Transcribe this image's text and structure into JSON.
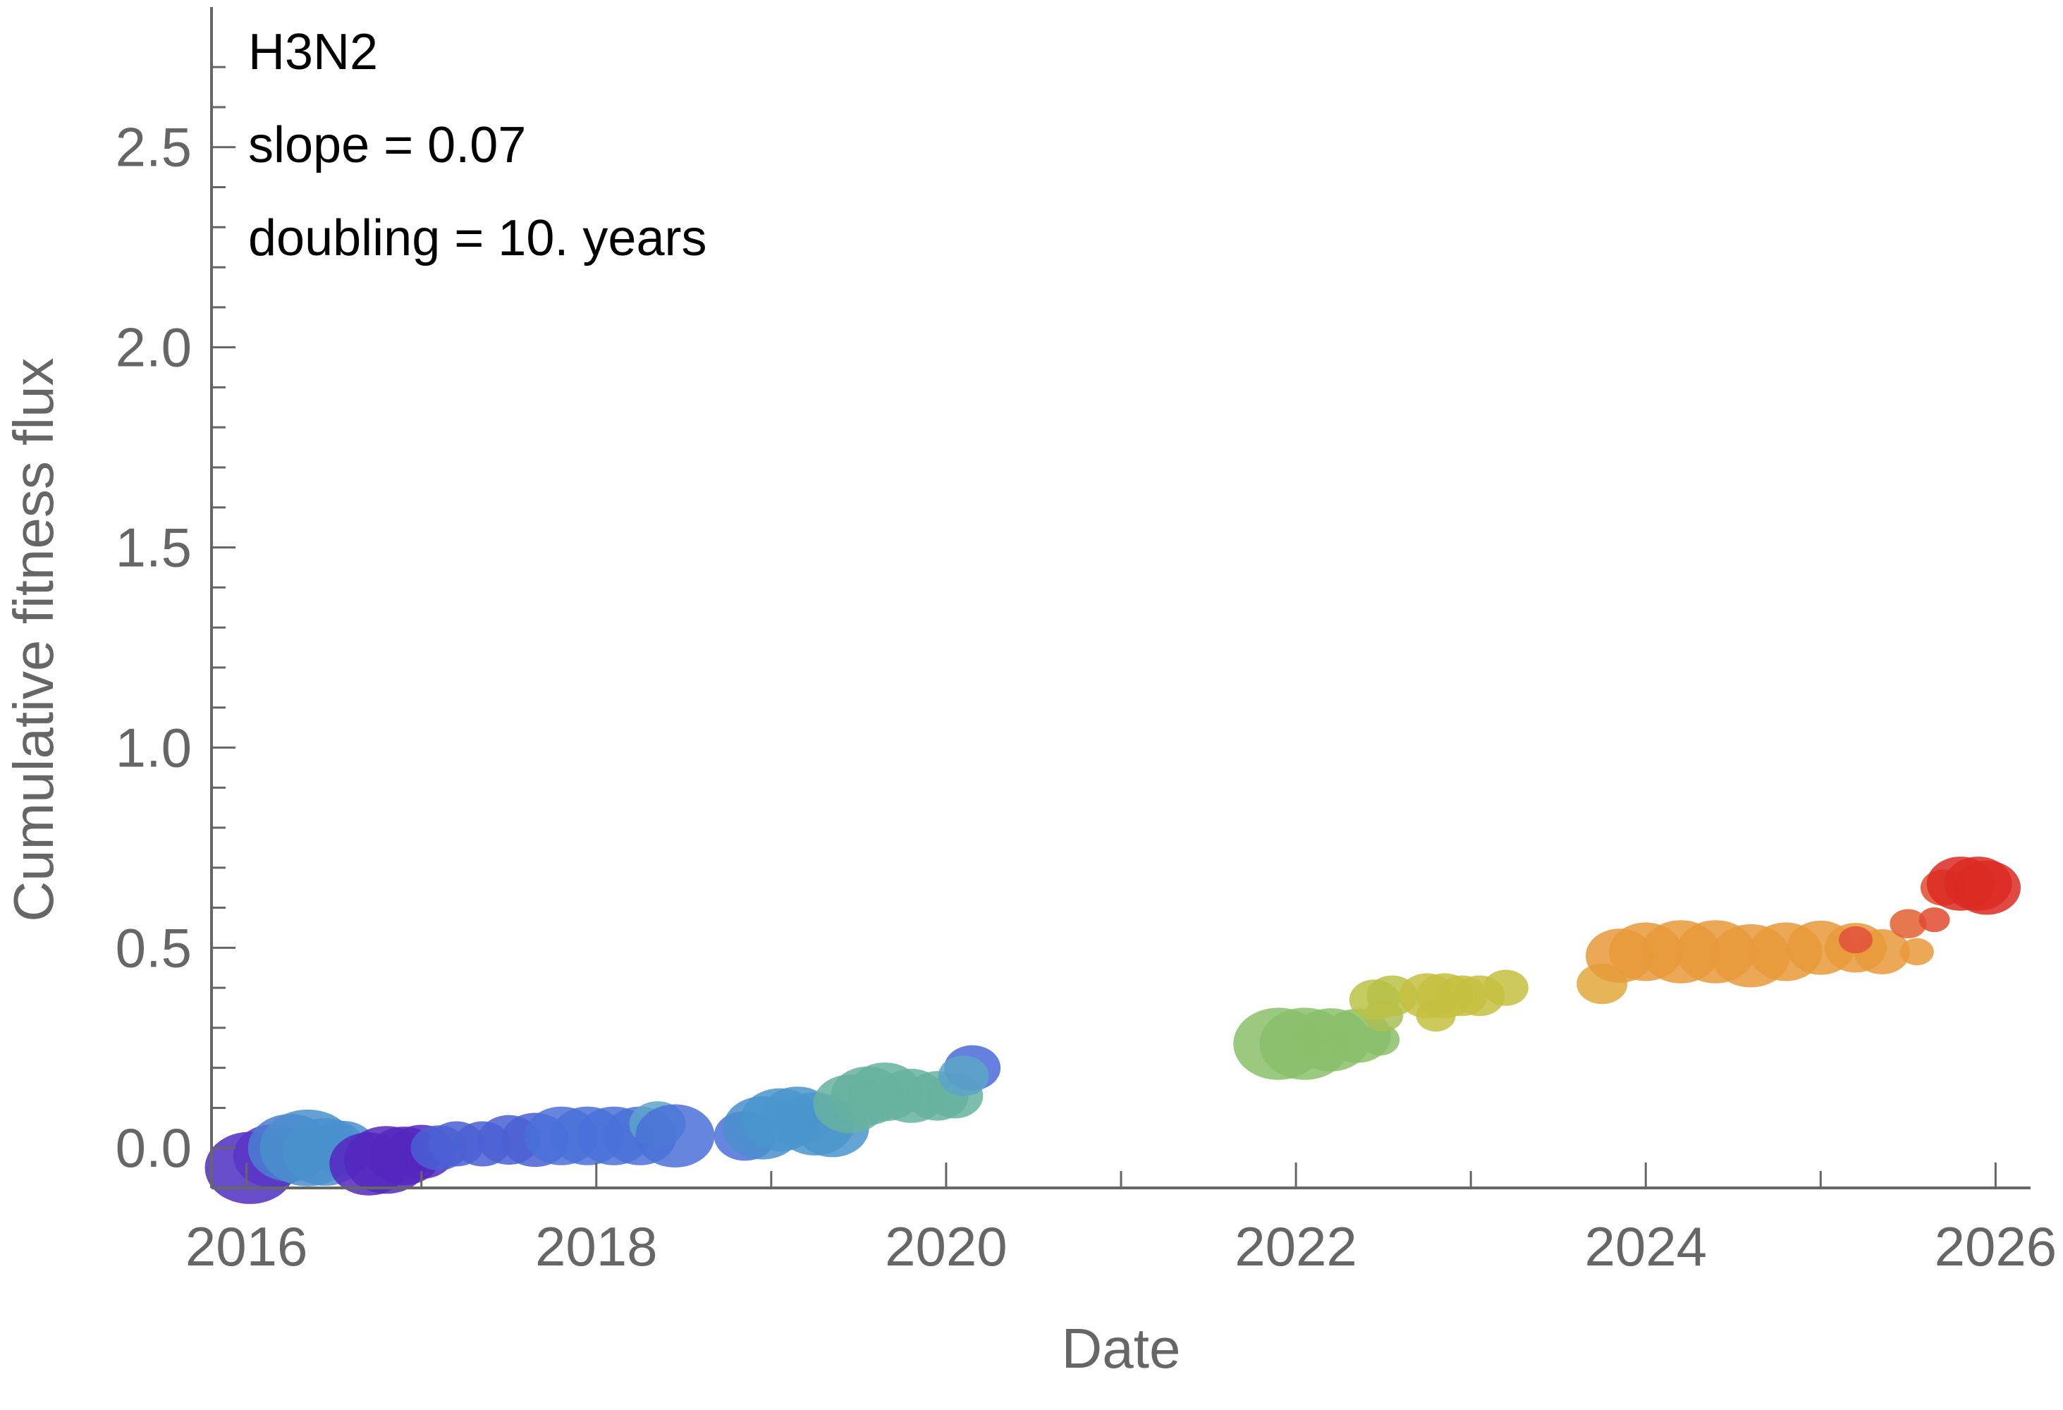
{
  "chart_data": {
    "type": "scatter",
    "annotations": [
      "H3N2",
      "slope = 0.07",
      "doubling = 10. years"
    ],
    "xlabel": "Date",
    "ylabel": "Cumulative fitness flux",
    "xlim": [
      2015.8,
      2026.2
    ],
    "ylim": [
      -0.1,
      2.85
    ],
    "x_ticks": [
      "2016",
      "2018",
      "2020",
      "2022",
      "2024",
      "2026"
    ],
    "x_tick_values": [
      2016,
      2018,
      2020,
      2022,
      2024,
      2026
    ],
    "y_ticks": [
      "0.0",
      "0.5",
      "1.0",
      "1.5",
      "2.0",
      "2.5"
    ],
    "y_tick_values": [
      0.0,
      0.5,
      1.0,
      1.5,
      2.0,
      2.5
    ],
    "color_scale": "rainbow by date (purple → blue → teal → green → yellow → orange → red)",
    "grid": false,
    "points": [
      {
        "x": 2016.02,
        "y": -0.05,
        "size": 3.2,
        "color": "#4f2dbf"
      },
      {
        "x": 2016.15,
        "y": -0.02,
        "size": 2.8,
        "color": "#5a35c8"
      },
      {
        "x": 2016.25,
        "y": 0.0,
        "size": 3.0,
        "color": "#4a7fd0"
      },
      {
        "x": 2016.35,
        "y": 0.0,
        "size": 3.4,
        "color": "#4a8fce"
      },
      {
        "x": 2016.45,
        "y": -0.01,
        "size": 3.0,
        "color": "#4a8fce"
      },
      {
        "x": 2016.55,
        "y": 0.0,
        "size": 2.4,
        "color": "#4a8fce"
      },
      {
        "x": 2016.7,
        "y": -0.04,
        "size": 2.8,
        "color": "#5527bf"
      },
      {
        "x": 2016.8,
        "y": -0.03,
        "size": 3.0,
        "color": "#5527bf"
      },
      {
        "x": 2016.9,
        "y": -0.02,
        "size": 2.6,
        "color": "#5527bf"
      },
      {
        "x": 2017.0,
        "y": -0.01,
        "size": 2.4,
        "color": "#5527bf"
      },
      {
        "x": 2017.1,
        "y": 0.0,
        "size": 2.0,
        "color": "#4a60d4"
      },
      {
        "x": 2017.2,
        "y": 0.01,
        "size": 2.0,
        "color": "#4a60d4"
      },
      {
        "x": 2017.35,
        "y": 0.01,
        "size": 2.0,
        "color": "#4a60d4"
      },
      {
        "x": 2017.5,
        "y": 0.02,
        "size": 2.2,
        "color": "#4a60d4"
      },
      {
        "x": 2017.65,
        "y": 0.02,
        "size": 2.4,
        "color": "#4a60d4"
      },
      {
        "x": 2017.8,
        "y": 0.03,
        "size": 2.6,
        "color": "#4a70d8"
      },
      {
        "x": 2017.95,
        "y": 0.03,
        "size": 2.6,
        "color": "#4a70d8"
      },
      {
        "x": 2018.1,
        "y": 0.03,
        "size": 2.6,
        "color": "#4a70d8"
      },
      {
        "x": 2018.25,
        "y": 0.03,
        "size": 2.6,
        "color": "#4a70d8"
      },
      {
        "x": 2018.35,
        "y": 0.06,
        "size": 2.0,
        "color": "#5aa5c8"
      },
      {
        "x": 2018.45,
        "y": 0.03,
        "size": 2.8,
        "color": "#4a70d8"
      },
      {
        "x": 2018.85,
        "y": 0.03,
        "size": 2.2,
        "color": "#4a70d8"
      },
      {
        "x": 2018.95,
        "y": 0.05,
        "size": 2.8,
        "color": "#4a8fce"
      },
      {
        "x": 2019.05,
        "y": 0.07,
        "size": 2.8,
        "color": "#4a95cc"
      },
      {
        "x": 2019.15,
        "y": 0.08,
        "size": 2.6,
        "color": "#4a95cc"
      },
      {
        "x": 2019.25,
        "y": 0.06,
        "size": 2.8,
        "color": "#4a95cc"
      },
      {
        "x": 2019.35,
        "y": 0.05,
        "size": 2.6,
        "color": "#4a95cc"
      },
      {
        "x": 2019.45,
        "y": 0.11,
        "size": 2.6,
        "color": "#66b2a0"
      },
      {
        "x": 2019.55,
        "y": 0.13,
        "size": 2.6,
        "color": "#66b2a0"
      },
      {
        "x": 2019.65,
        "y": 0.14,
        "size": 2.6,
        "color": "#66b2a0"
      },
      {
        "x": 2019.8,
        "y": 0.13,
        "size": 2.4,
        "color": "#66b2a0"
      },
      {
        "x": 2019.95,
        "y": 0.13,
        "size": 2.2,
        "color": "#66b2a0"
      },
      {
        "x": 2020.05,
        "y": 0.13,
        "size": 2.0,
        "color": "#66b2a0"
      },
      {
        "x": 2020.15,
        "y": 0.2,
        "size": 2.0,
        "color": "#4a6ad8"
      },
      {
        "x": 2020.1,
        "y": 0.18,
        "size": 1.8,
        "color": "#5aa5c8"
      },
      {
        "x": 2021.9,
        "y": 0.26,
        "size": 3.2,
        "color": "#88bf68"
      },
      {
        "x": 2022.05,
        "y": 0.26,
        "size": 3.2,
        "color": "#88bf68"
      },
      {
        "x": 2022.2,
        "y": 0.27,
        "size": 2.8,
        "color": "#88bf68"
      },
      {
        "x": 2022.35,
        "y": 0.28,
        "size": 2.4,
        "color": "#88bf68"
      },
      {
        "x": 2022.48,
        "y": 0.27,
        "size": 1.4,
        "color": "#88bf68"
      },
      {
        "x": 2022.5,
        "y": 0.33,
        "size": 1.4,
        "color": "#a8c055"
      },
      {
        "x": 2022.45,
        "y": 0.37,
        "size": 1.8,
        "color": "#b8c245"
      },
      {
        "x": 2022.55,
        "y": 0.38,
        "size": 1.8,
        "color": "#b8c245"
      },
      {
        "x": 2022.75,
        "y": 0.38,
        "size": 2.0,
        "color": "#c5c040"
      },
      {
        "x": 2022.85,
        "y": 0.38,
        "size": 2.0,
        "color": "#c5c040"
      },
      {
        "x": 2022.95,
        "y": 0.38,
        "size": 1.8,
        "color": "#c5c040"
      },
      {
        "x": 2023.05,
        "y": 0.38,
        "size": 1.8,
        "color": "#c5c040"
      },
      {
        "x": 2023.2,
        "y": 0.4,
        "size": 1.6,
        "color": "#c5c040"
      },
      {
        "x": 2022.8,
        "y": 0.33,
        "size": 1.4,
        "color": "#c5c040"
      },
      {
        "x": 2023.75,
        "y": 0.41,
        "size": 1.8,
        "color": "#e0a83a"
      },
      {
        "x": 2023.85,
        "y": 0.48,
        "size": 2.4,
        "color": "#e89a3a"
      },
      {
        "x": 2024.0,
        "y": 0.49,
        "size": 2.6,
        "color": "#e89a3a"
      },
      {
        "x": 2024.2,
        "y": 0.49,
        "size": 2.8,
        "color": "#e89a3a"
      },
      {
        "x": 2024.4,
        "y": 0.49,
        "size": 2.8,
        "color": "#e89a3a"
      },
      {
        "x": 2024.6,
        "y": 0.48,
        "size": 2.8,
        "color": "#e89a3a"
      },
      {
        "x": 2024.8,
        "y": 0.49,
        "size": 2.6,
        "color": "#e89a3a"
      },
      {
        "x": 2025.0,
        "y": 0.5,
        "size": 2.4,
        "color": "#e89a3a"
      },
      {
        "x": 2025.2,
        "y": 0.5,
        "size": 2.2,
        "color": "#e89a3a"
      },
      {
        "x": 2025.35,
        "y": 0.49,
        "size": 2.0,
        "color": "#e89a3a"
      },
      {
        "x": 2025.2,
        "y": 0.52,
        "size": 1.2,
        "color": "#e0503a"
      },
      {
        "x": 2025.55,
        "y": 0.49,
        "size": 1.2,
        "color": "#e89a3a"
      },
      {
        "x": 2025.5,
        "y": 0.56,
        "size": 1.3,
        "color": "#e06030"
      },
      {
        "x": 2025.65,
        "y": 0.57,
        "size": 1.1,
        "color": "#e04a30"
      },
      {
        "x": 2025.7,
        "y": 0.65,
        "size": 1.6,
        "color": "#e04a30"
      },
      {
        "x": 2025.8,
        "y": 0.66,
        "size": 2.4,
        "color": "#dc2a22"
      },
      {
        "x": 2025.9,
        "y": 0.66,
        "size": 2.4,
        "color": "#dc2a22"
      },
      {
        "x": 2025.95,
        "y": 0.65,
        "size": 2.4,
        "color": "#dc2a22"
      }
    ]
  }
}
